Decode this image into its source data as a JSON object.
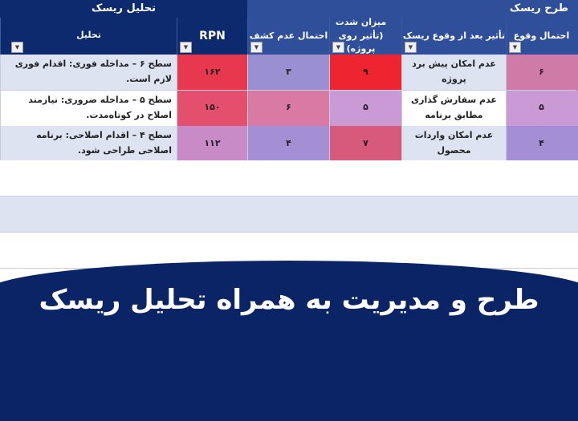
{
  "header": {
    "group_analysis": "تحلیل ریسک",
    "group_design": "طرح ریسک"
  },
  "columns": {
    "analysis": "تحلیل",
    "rpn": "RPN",
    "detection": "احتمال عدم کشف",
    "severity": "میزان شدت (تأثیر روی پروژه)",
    "impact": "تأثیر بعد از وقوع ریسک",
    "occurrence": "احتمال وقوع"
  },
  "rows": [
    {
      "occurrence": "۶",
      "impact": "عدم امکان پیش برد پروژه",
      "severity": "۹",
      "detection": "۳",
      "rpn": "۱۶۲",
      "analysis": "سطح ۶ – مداخله فوری: اقدام فوری لازم است."
    },
    {
      "occurrence": "۵",
      "impact": "عدم سفارش گذاری مطابق برنامه",
      "severity": "۵",
      "detection": "۶",
      "rpn": "۱۵۰",
      "analysis": "سطح ۵ – مداخله ضروری: نیازمند اصلاح در کوتاه‌مدت."
    },
    {
      "occurrence": "۴",
      "impact": "عدم امکان واردات محصول",
      "severity": "۷",
      "detection": "۴",
      "rpn": "۱۱۲",
      "analysis": "سطح ۴ – اقدام اصلاحی: برنامه اصلاحی طراحی شود."
    }
  ],
  "banner": {
    "title": "طرح و مدیریت به همراه تحلیل ریسک"
  },
  "colors": {
    "navy": "#0e2a6e",
    "blue": "#2f4f9b",
    "high": "#ee2530"
  }
}
